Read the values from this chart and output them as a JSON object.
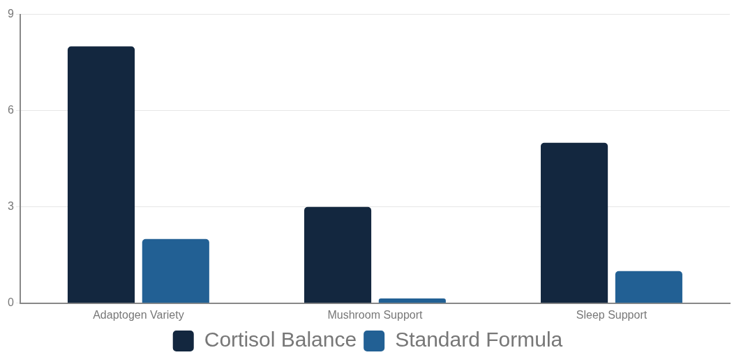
{
  "chart_data": {
    "type": "bar",
    "categories": [
      "Adaptogen Variety",
      "Mushroom Support",
      "Sleep Support"
    ],
    "series": [
      {
        "name": "Cortisol Balance",
        "color": "#13273f",
        "values": [
          8,
          3,
          5
        ]
      },
      {
        "name": "Standard Formula",
        "color": "#226094",
        "values": [
          2,
          0.15,
          1
        ]
      }
    ],
    "ylim": [
      0,
      9
    ],
    "yticks": [
      0,
      3,
      6,
      9
    ],
    "grid": "y",
    "legend": "bottom"
  }
}
